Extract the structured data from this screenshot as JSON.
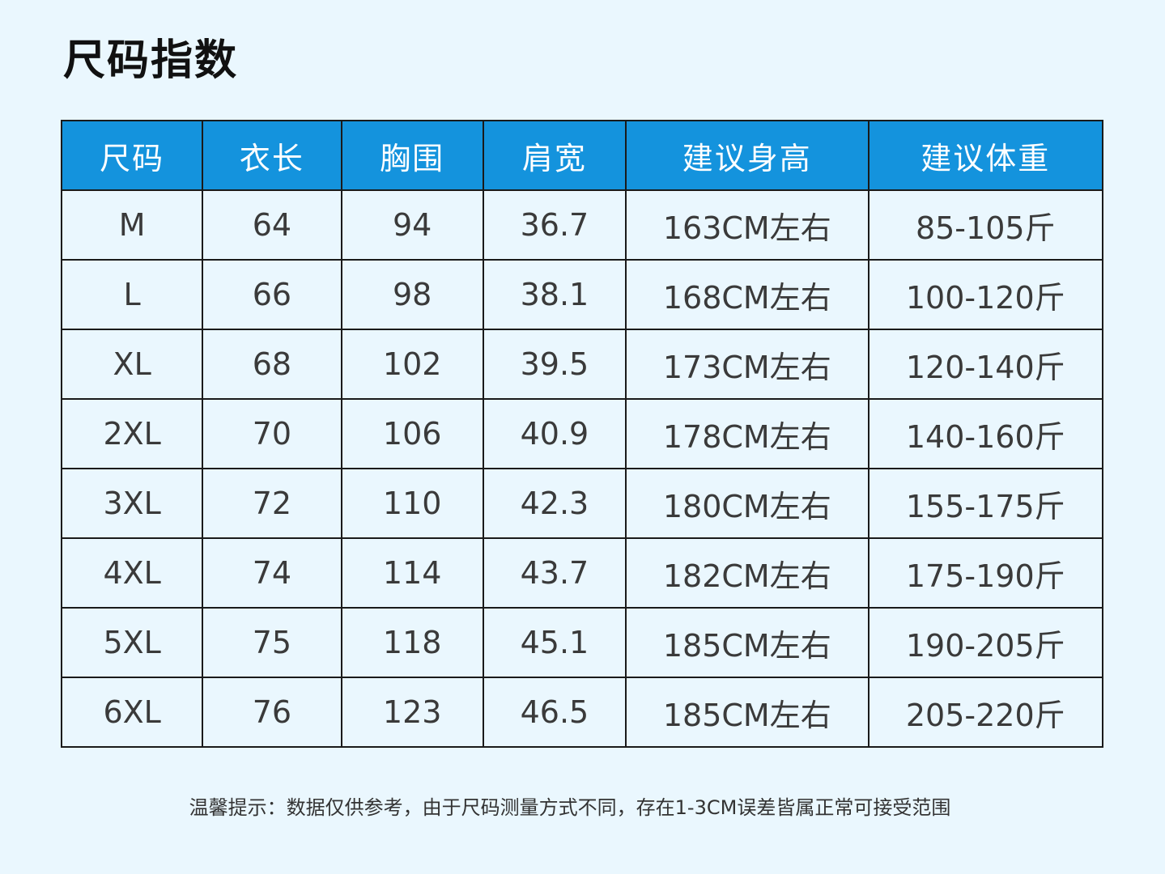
{
  "title": "尺码指数",
  "table": {
    "headers": [
      "尺码",
      "衣长",
      "胸围",
      "肩宽",
      "建议身高",
      "建议体重"
    ],
    "rows": [
      [
        "M",
        "64",
        "94",
        "36.7",
        "163CM左右",
        "85-105斤"
      ],
      [
        "L",
        "66",
        "98",
        "38.1",
        "168CM左右",
        "100-120斤"
      ],
      [
        "XL",
        "68",
        "102",
        "39.5",
        "173CM左右",
        "120-140斤"
      ],
      [
        "2XL",
        "70",
        "106",
        "40.9",
        "178CM左右",
        "140-160斤"
      ],
      [
        "3XL",
        "72",
        "110",
        "42.3",
        "180CM左右",
        "155-175斤"
      ],
      [
        "4XL",
        "74",
        "114",
        "43.7",
        "182CM左右",
        "175-190斤"
      ],
      [
        "5XL",
        "75",
        "118",
        "45.1",
        "185CM左右",
        "190-205斤"
      ],
      [
        "6XL",
        "76",
        "123",
        "46.5",
        "185CM左右",
        "205-220斤"
      ]
    ]
  },
  "footnote": "温馨提示：数据仅供参考，由于尺码测量方式不同，存在1-3CM误差皆属正常可接受范围",
  "colors": {
    "background": "#eaf7fe",
    "header_background": "#1493dd",
    "header_text": "#ffffff",
    "border": "#1a1a1a"
  }
}
